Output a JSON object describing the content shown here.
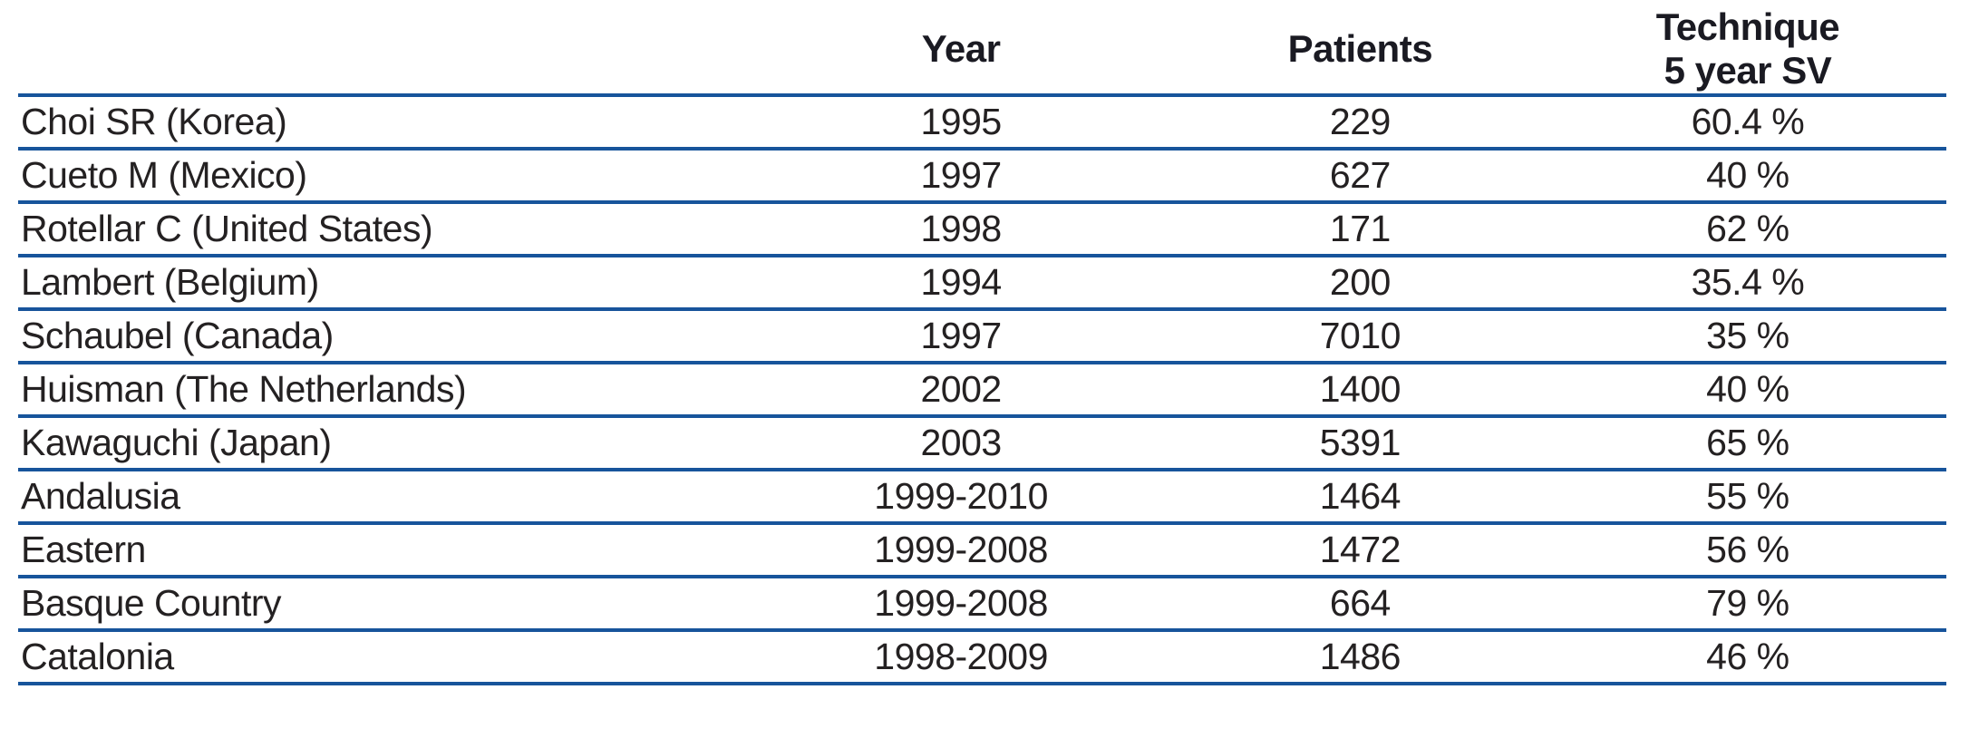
{
  "table": {
    "headers": {
      "study": "",
      "year": "Year",
      "patients": "Patients",
      "technique_line1": "Technique",
      "technique_line2": "5 year SV"
    },
    "rows": [
      {
        "study": "Choi SR (Korea)",
        "year": "1995",
        "patients": "229",
        "sv": "60.4 %"
      },
      {
        "study": "Cueto M (Mexico)",
        "year": "1997",
        "patients": "627",
        "sv": "40 %"
      },
      {
        "study": "Rotellar C (United States)",
        "year": "1998",
        "patients": "171",
        "sv": "62 %"
      },
      {
        "study": "Lambert (Belgium)",
        "year": "1994",
        "patients": "200",
        "sv": "35.4 %"
      },
      {
        "study": "Schaubel (Canada)",
        "year": "1997",
        "patients": "7010",
        "sv": "35 %"
      },
      {
        "study": "Huisman (The Netherlands)",
        "year": "2002",
        "patients": "1400",
        "sv": "40 %"
      },
      {
        "study": "Kawaguchi (Japan)",
        "year": "2003",
        "patients": "5391",
        "sv": "65 %"
      },
      {
        "study": "Andalusia",
        "year": "1999-2010",
        "patients": "1464",
        "sv": "55 %"
      },
      {
        "study": "Eastern",
        "year": "1999-2008",
        "patients": "1472",
        "sv": "56 %"
      },
      {
        "study": "Basque Country",
        "year": "1999-2008",
        "patients": "664",
        "sv": "79 %"
      },
      {
        "study": "Catalonia",
        "year": "1998-2009",
        "patients": "1486",
        "sv": "46 %"
      }
    ],
    "colors": {
      "rule_blue": "#17549B",
      "body_text": "#242122",
      "header_text": "#1a1a22"
    }
  }
}
